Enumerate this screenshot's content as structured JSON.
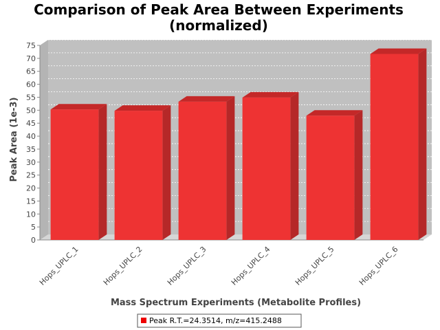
{
  "chart_data": {
    "type": "bar",
    "title": "Comparison of Peak Area Between Experiments",
    "subtitle": "(normalized)",
    "xlabel": "Mass Spectrum Experiments (Metabolite Profiles)",
    "ylabel": "Peak Area (1e-3)",
    "categories": [
      "Hops_UPLC_1",
      "Hops_UPLC_2",
      "Hops_UPLC_3",
      "Hops_UPLC_4",
      "Hops_UPLC_5",
      "Hops_UPLC_6"
    ],
    "series": [
      {
        "name": "Peak R.T.=24.3514, m/z=415.2488",
        "values": [
          50.3,
          49.8,
          53.3,
          54.9,
          47.9,
          71.7
        ]
      }
    ],
    "ylim": [
      0,
      75
    ],
    "yticks": [
      0,
      5,
      10,
      15,
      20,
      25,
      30,
      35,
      40,
      45,
      50,
      55,
      60,
      65,
      70,
      75
    ],
    "grid": true,
    "legend_position": "bottom",
    "three_d": true,
    "colors": {
      "bar_front": "#ee3333",
      "bar_top": "#c42828",
      "bar_side": "#b52828",
      "plot_bg": "#c0c0c0",
      "floor": "#d6d6d6",
      "legend_swatch": "#ee0000"
    }
  }
}
